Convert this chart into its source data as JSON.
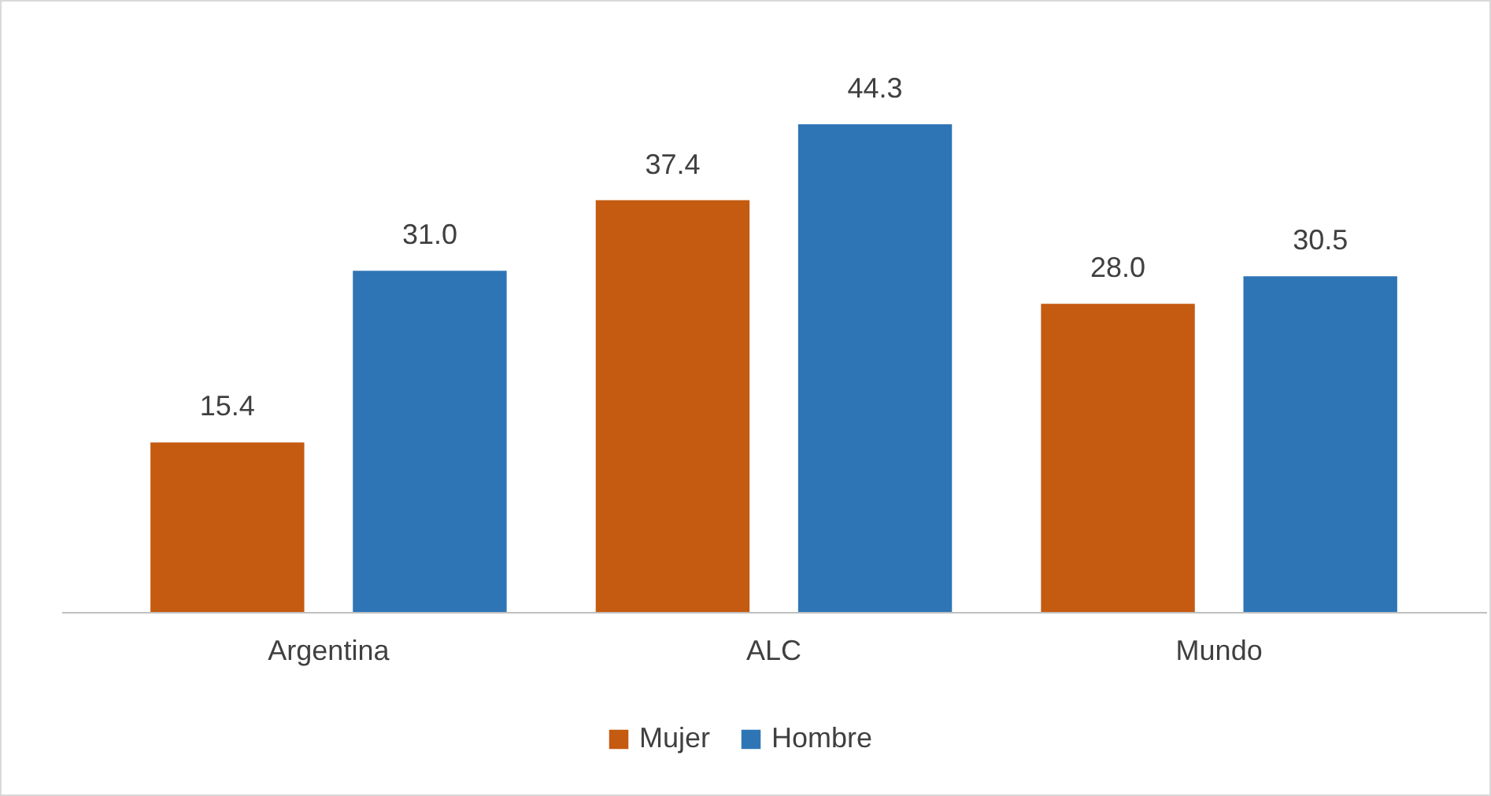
{
  "chart_data": {
    "type": "bar",
    "categories": [
      "Argentina",
      "ALC",
      "Mundo"
    ],
    "series": [
      {
        "name": "Mujer",
        "color": "#c55a11",
        "values": [
          15.4,
          37.4,
          28.0
        ],
        "value_labels": [
          "15.4",
          "37.4",
          "28.0"
        ]
      },
      {
        "name": "Hombre",
        "color": "#2e75b6",
        "values": [
          31.0,
          44.3,
          30.5
        ],
        "value_labels": [
          "31.0",
          "44.3",
          "30.5"
        ]
      }
    ],
    "legend": "bottom",
    "grid": false
  }
}
